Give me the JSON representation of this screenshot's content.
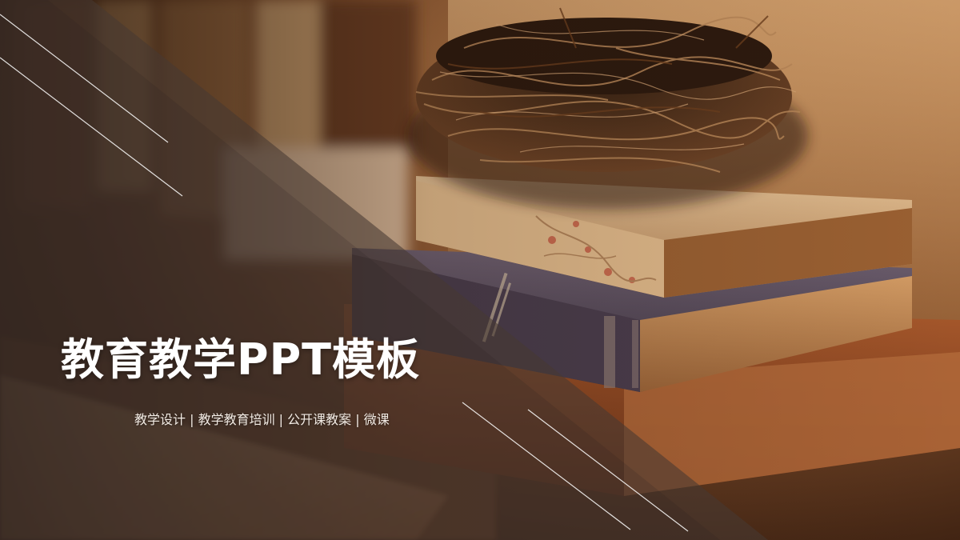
{
  "slide": {
    "title": "教育教学PPT模板",
    "subtitle": "教学设计 | 教学教育培训 | 公开课教案 | 微课"
  },
  "colors": {
    "overlay": "#4a3a30",
    "accent_line": "#ffffff",
    "background_warm": "#8a5530"
  },
  "image": {
    "description_icon": "books-and-nest-photo-icon"
  }
}
